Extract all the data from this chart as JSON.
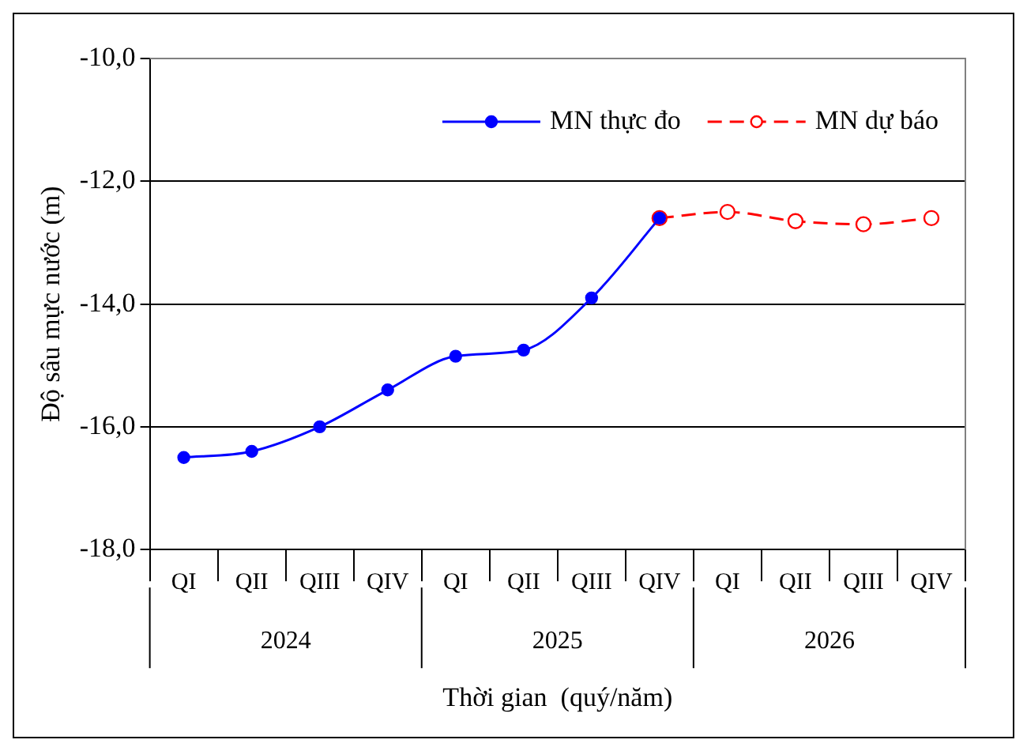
{
  "chart_data": {
    "type": "line",
    "xlabel": "Thời gian  (quý/năm)",
    "ylabel": "Độ sâu mực nước (m)",
    "categories": [
      "QI",
      "QII",
      "QIII",
      "QIV",
      "QI",
      "QII",
      "QIII",
      "QIV",
      "QI",
      "QII",
      "QIII",
      "QIV"
    ],
    "annotations": [
      "2024",
      "2025",
      "2026"
    ],
    "series": [
      {
        "name": "MN thực đo",
        "color": "#0000ff",
        "line_style": "solid",
        "values": [
          -16.5,
          -16.4,
          -16.0,
          -15.4,
          -14.85,
          -14.75,
          -13.9,
          -12.6,
          null,
          null,
          null,
          null
        ]
      },
      {
        "name": "MN dự báo",
        "color": "#ff0000",
        "line_style": "dashed",
        "values": [
          null,
          null,
          null,
          null,
          null,
          null,
          null,
          -12.6,
          -12.5,
          -12.65,
          -12.7,
          -12.6
        ]
      }
    ],
    "ylim": [
      -18,
      -10
    ],
    "yticks": [
      {
        "value": -18,
        "label": "-18,0"
      },
      {
        "value": -16,
        "label": "-16,0"
      },
      {
        "value": -14,
        "label": "-14,0"
      },
      {
        "value": -12,
        "label": "-12,0"
      },
      {
        "value": -10,
        "label": "-10,0"
      }
    ],
    "grid": "y",
    "legend": "top right",
    "marker": "circle"
  }
}
